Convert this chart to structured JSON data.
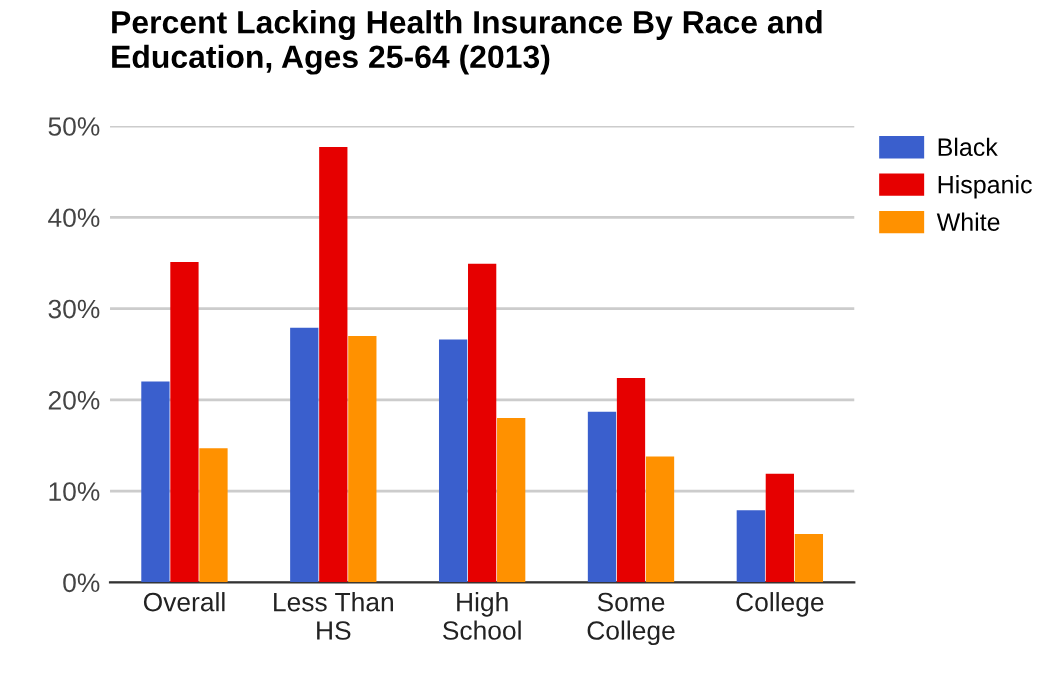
{
  "chart_data": {
    "type": "bar",
    "title": "Percent Lacking Health Insurance By Race and\nEducation, Ages 25-64 (2013)",
    "categories": [
      "Overall",
      "Less Than\nHS",
      "High\nSchool",
      "Some\nCollege",
      "College"
    ],
    "series": [
      {
        "name": "Black",
        "color": "#3a5fcd",
        "values": [
          22.0,
          27.9,
          26.6,
          18.7,
          7.9
        ]
      },
      {
        "name": "Hispanic",
        "color": "#e60000",
        "values": [
          35.1,
          47.7,
          34.9,
          22.4,
          11.9
        ]
      },
      {
        "name": "White",
        "color": "#ff9100",
        "values": [
          14.7,
          27.0,
          18.0,
          13.8,
          5.3
        ]
      }
    ],
    "ylim": [
      0,
      50
    ],
    "yticks": [
      {
        "value": 0,
        "label": "0%"
      },
      {
        "value": 10,
        "label": "10%"
      },
      {
        "value": 20,
        "label": "20%"
      },
      {
        "value": 30,
        "label": "30%"
      },
      {
        "value": 40,
        "label": "40%"
      },
      {
        "value": 50,
        "label": "50%"
      }
    ],
    "grid": "y",
    "legend": "right"
  }
}
